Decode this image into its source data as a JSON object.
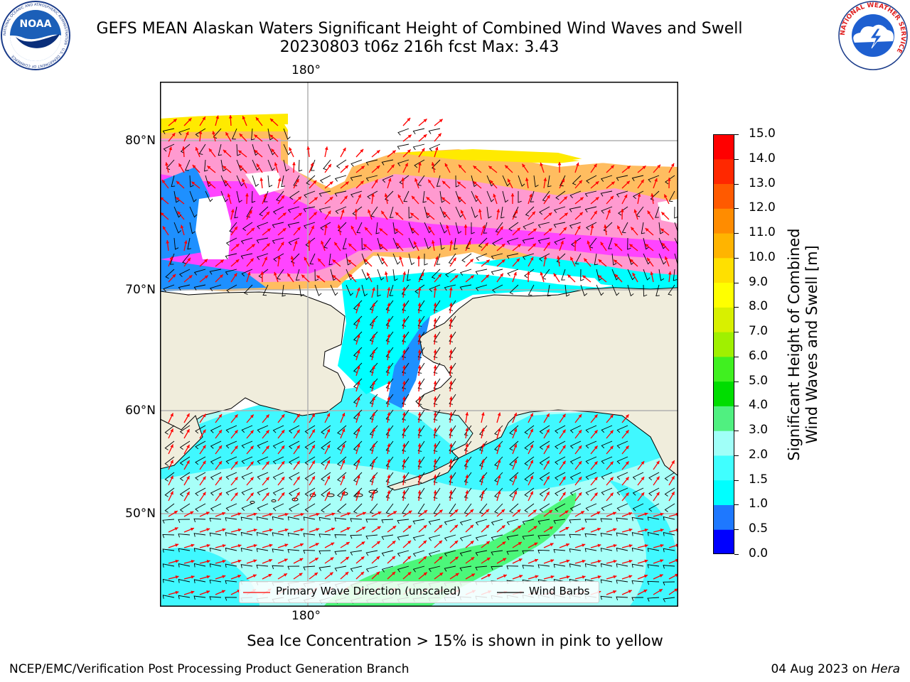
{
  "header": {
    "title_line1": "GEFS MEAN Alaskan Waters Significant Height of Combined Wind Waves and Swell",
    "title_line2": "20230803 t06z 216h fcst   Max: 3.43"
  },
  "logos": {
    "noaa_text": "NOAA",
    "noaa_ring_text": "NATIONAL OCEANIC AND ATMOSPHERIC ADMINISTRATION · U.S. DEPARTMENT OF COMMERCE",
    "nws_ring_text": "NATIONAL WEATHER SERVICE"
  },
  "map": {
    "lon_label_top": "180°",
    "lon_label_bottom": "180°",
    "lat_labels": [
      "80°N",
      "70°N",
      "60°N",
      "50°N"
    ],
    "colors": {
      "land": "#f0eddc",
      "ocean_light": "#a8fff8",
      "ocean_cyan": "#00ffff",
      "ocean_mid": "#40f8ff",
      "ocean_blue": "#1e90ff",
      "ocean_deep": "#0000ff",
      "green": "#4cf77a",
      "ice_pink": "#ff44ff",
      "ice_salmon": "#ff9ad0",
      "ice_orange": "#ffbd60",
      "ice_yellow": "#ffea00",
      "wave_arrow": "#ff0000",
      "barb": "#000000"
    }
  },
  "colorbar": {
    "ticks": [
      "0.0",
      "0.5",
      "1.0",
      "1.5",
      "2.0",
      "3.0",
      "4.0",
      "5.0",
      "6.0",
      "7.0",
      "8.0",
      "9.0",
      "10.0",
      "11.0",
      "12.0",
      "13.0",
      "14.0",
      "15.0"
    ],
    "colors": [
      "#0000ff",
      "#1e78ff",
      "#00ffff",
      "#40ffff",
      "#a0fff8",
      "#50f080",
      "#00dd00",
      "#40f020",
      "#a0f000",
      "#d8f000",
      "#ffff00",
      "#ffe000",
      "#ffb400",
      "#ff8c00",
      "#ff5a00",
      "#ff2800",
      "#ff0000"
    ],
    "label_line1": "Significant Height of Combined",
    "label_line2": "Wind Waves and Swell [m]"
  },
  "legend": {
    "wave_label": "Primary Wave Direction (unscaled)",
    "barb_label": "Wind Barbs"
  },
  "footer": {
    "note": "Sea Ice Concentration > 15% is shown in pink to yellow",
    "left": "NCEP/EMC/Verification Post Processing Product Generation Branch",
    "right_date": "04 Aug 2023 on ",
    "right_machine": "Hera"
  }
}
